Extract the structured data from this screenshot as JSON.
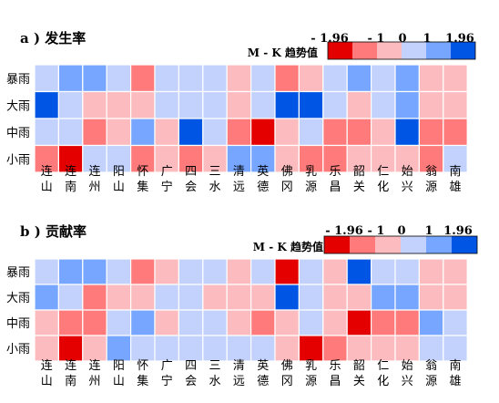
{
  "legend_title": "M - K 趋势值",
  "legend_ticks": [
    "- 1.96",
    "- 1",
    "0",
    "1",
    "1.96"
  ],
  "colors": {
    "c0": "#e50000",
    "c1": "#ff7b7b",
    "c2": "#fcbcbf",
    "c3": "#c2d2fc",
    "c4": "#76a6ff",
    "c5": "#0055e5"
  },
  "chart_data": [
    {
      "type": "heatmap",
      "title": "a ) 发生率",
      "rows": [
        "暴雨",
        "大雨",
        "中雨",
        "小雨"
      ],
      "columns": [
        [
          "连",
          "山"
        ],
        [
          "连",
          "南"
        ],
        [
          "连",
          "州"
        ],
        [
          "阳",
          "山"
        ],
        [
          "怀",
          "集"
        ],
        [
          "广",
          "宁"
        ],
        [
          "四",
          "会"
        ],
        [
          "三",
          "水"
        ],
        [
          "清",
          "远"
        ],
        [
          "英",
          "德"
        ],
        [
          "佛",
          "冈"
        ],
        [
          "乳",
          "源"
        ],
        [
          "乐",
          "昌"
        ],
        [
          "韶",
          "关"
        ],
        [
          "仁",
          "化"
        ],
        [
          "始",
          "兴"
        ],
        [
          "翁",
          "源"
        ],
        [
          "南",
          "雄"
        ]
      ],
      "levels": [
        [
          3,
          4,
          4,
          3,
          1,
          3,
          3,
          3,
          2,
          3,
          1,
          2,
          3,
          4,
          3,
          4,
          2,
          2
        ],
        [
          5,
          3,
          2,
          2,
          2,
          3,
          3,
          3,
          2,
          3,
          5,
          5,
          3,
          2,
          3,
          4,
          2,
          2
        ],
        [
          3,
          3,
          1,
          2,
          4,
          2,
          5,
          3,
          1,
          0,
          2,
          3,
          1,
          1,
          2,
          5,
          1,
          1
        ],
        [
          1,
          0,
          3,
          3,
          1,
          2,
          1,
          2,
          4,
          4,
          2,
          1,
          1,
          2,
          2,
          2,
          1,
          3
        ]
      ]
    },
    {
      "type": "heatmap",
      "title": "b ) 贡献率",
      "rows": [
        "暴雨",
        "大雨",
        "中雨",
        "小雨"
      ],
      "columns": [
        [
          "连",
          "山"
        ],
        [
          "连",
          "南"
        ],
        [
          "连",
          "州"
        ],
        [
          "阳",
          "山"
        ],
        [
          "怀",
          "集"
        ],
        [
          "广",
          "宁"
        ],
        [
          "四",
          "会"
        ],
        [
          "三",
          "水"
        ],
        [
          "清",
          "远"
        ],
        [
          "英",
          "德"
        ],
        [
          "佛",
          "冈"
        ],
        [
          "乳",
          "源"
        ],
        [
          "乐",
          "昌"
        ],
        [
          "韶",
          "关"
        ],
        [
          "仁",
          "化"
        ],
        [
          "始",
          "兴"
        ],
        [
          "翁",
          "源"
        ],
        [
          "南",
          "雄"
        ]
      ],
      "levels": [
        [
          3,
          4,
          4,
          3,
          1,
          2,
          3,
          3,
          2,
          3,
          0,
          3,
          2,
          5,
          3,
          3,
          2,
          2
        ],
        [
          4,
          3,
          1,
          2,
          2,
          3,
          3,
          2,
          2,
          2,
          5,
          3,
          2,
          2,
          4,
          4,
          2,
          2
        ],
        [
          2,
          1,
          1,
          3,
          4,
          2,
          3,
          3,
          2,
          1,
          2,
          3,
          2,
          0,
          1,
          1,
          4,
          3
        ],
        [
          2,
          0,
          2,
          4,
          3,
          3,
          3,
          3,
          3,
          3,
          2,
          0,
          1,
          2,
          2,
          2,
          3,
          3
        ]
      ]
    }
  ]
}
